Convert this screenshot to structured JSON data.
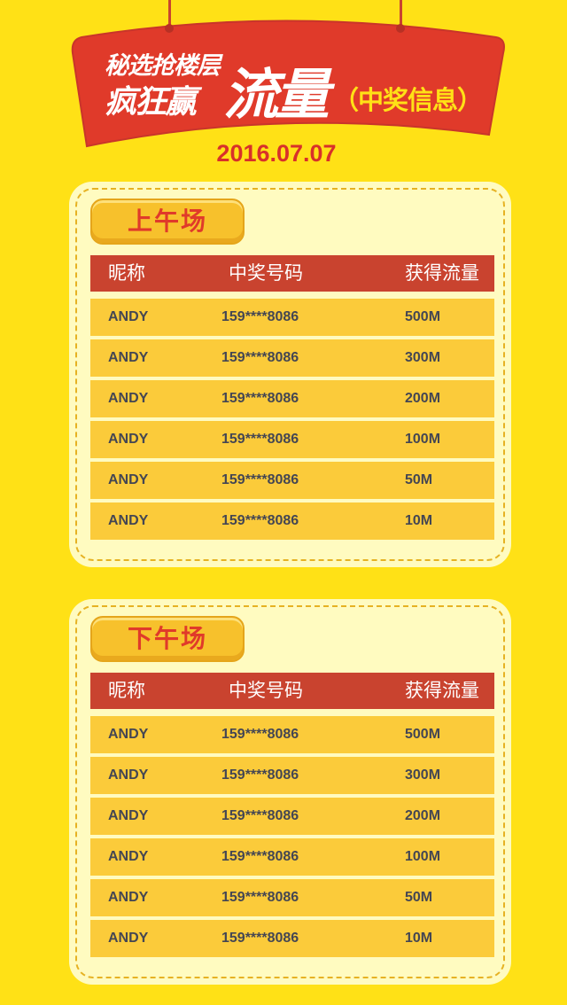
{
  "header": {
    "title_line1": "秘选抢楼层",
    "title_line2": "疯狂赢",
    "title_big": "流量",
    "title_suffix": "（中奖信息）",
    "date": "2016.07.07"
  },
  "columns": [
    "昵称",
    "中奖号码",
    "获得流量"
  ],
  "sessions": [
    {
      "label": "上午场",
      "rows": [
        {
          "name": "ANDY",
          "phone": "159****8086",
          "amount": "500M"
        },
        {
          "name": "ANDY",
          "phone": "159****8086",
          "amount": "300M"
        },
        {
          "name": "ANDY",
          "phone": "159****8086",
          "amount": "200M"
        },
        {
          "name": "ANDY",
          "phone": "159****8086",
          "amount": "100M"
        },
        {
          "name": "ANDY",
          "phone": "159****8086",
          "amount": "50M"
        },
        {
          "name": "ANDY",
          "phone": "159****8086",
          "amount": "10M"
        }
      ]
    },
    {
      "label": "下午场",
      "rows": [
        {
          "name": "ANDY",
          "phone": "159****8086",
          "amount": "500M"
        },
        {
          "name": "ANDY",
          "phone": "159****8086",
          "amount": "300M"
        },
        {
          "name": "ANDY",
          "phone": "159****8086",
          "amount": "200M"
        },
        {
          "name": "ANDY",
          "phone": "159****8086",
          "amount": "100M"
        },
        {
          "name": "ANDY",
          "phone": "159****8086",
          "amount": "50M"
        },
        {
          "name": "ANDY",
          "phone": "159****8086",
          "amount": "10M"
        }
      ]
    }
  ],
  "colors": {
    "background": "#FFE116",
    "banner": "#E03A2A",
    "header_row": "#C9432F",
    "row": "#FBCB3A",
    "card": "#FFFBC0"
  }
}
